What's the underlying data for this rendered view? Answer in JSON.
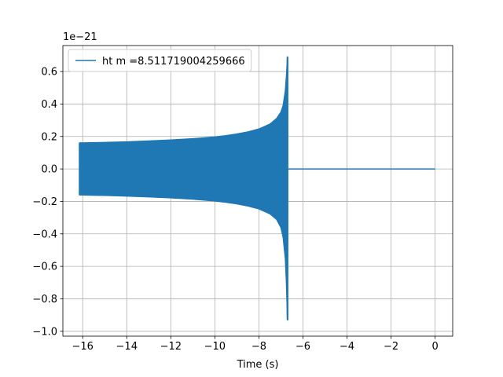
{
  "chart_data": {
    "type": "line",
    "title": "",
    "xlabel": "Time (s)",
    "ylabel": "",
    "offset_text": "1e−21",
    "xlim": [
      -16.9,
      0.8
    ],
    "ylim": [
      -1.03,
      0.76
    ],
    "x_ticks": [
      -16,
      -14,
      -12,
      -10,
      -8,
      -6,
      -4,
      -2,
      0
    ],
    "x_tick_labels": [
      "−16",
      "−14",
      "−12",
      "−10",
      "−8",
      "−6",
      "−4",
      "−2",
      "0"
    ],
    "y_ticks": [
      -1.0,
      -0.8,
      -0.6,
      -0.4,
      -0.2,
      0.0,
      0.2,
      0.4,
      0.6
    ],
    "y_tick_labels": [
      "−1.0",
      "−0.8",
      "−0.6",
      "−0.4",
      "−0.2",
      "0.0",
      "0.2",
      "0.4",
      "0.6"
    ],
    "grid": true,
    "legend_position": "top-left",
    "color": "#1f77b4",
    "series": [
      {
        "name": "ht m =8.511719004259666",
        "upper_envelope": {
          "x": [
            -16.15,
            -15,
            -14,
            -13,
            -12,
            -11,
            -10,
            -9.5,
            -9,
            -8.5,
            -8,
            -7.5,
            -7.2,
            -7.0,
            -6.9,
            -6.8,
            -6.75,
            -6.7
          ],
          "y": [
            0.16,
            0.163,
            0.167,
            0.172,
            0.178,
            0.186,
            0.197,
            0.205,
            0.215,
            0.228,
            0.246,
            0.276,
            0.31,
            0.35,
            0.39,
            0.48,
            0.57,
            0.69
          ]
        },
        "lower_envelope": {
          "x": [
            -16.15,
            -15,
            -14,
            -13,
            -12,
            -11,
            -10,
            -9.5,
            -9,
            -8.5,
            -8,
            -7.5,
            -7.2,
            -7.0,
            -6.9,
            -6.8,
            -6.75,
            -6.7
          ],
          "y": [
            -0.16,
            -0.163,
            -0.167,
            -0.172,
            -0.178,
            -0.186,
            -0.197,
            -0.205,
            -0.215,
            -0.228,
            -0.246,
            -0.276,
            -0.31,
            -0.36,
            -0.42,
            -0.55,
            -0.7,
            -0.93
          ]
        },
        "tail": {
          "x": [
            -6.7,
            0.0
          ],
          "y": [
            0.0,
            0.0
          ]
        }
      }
    ]
  }
}
